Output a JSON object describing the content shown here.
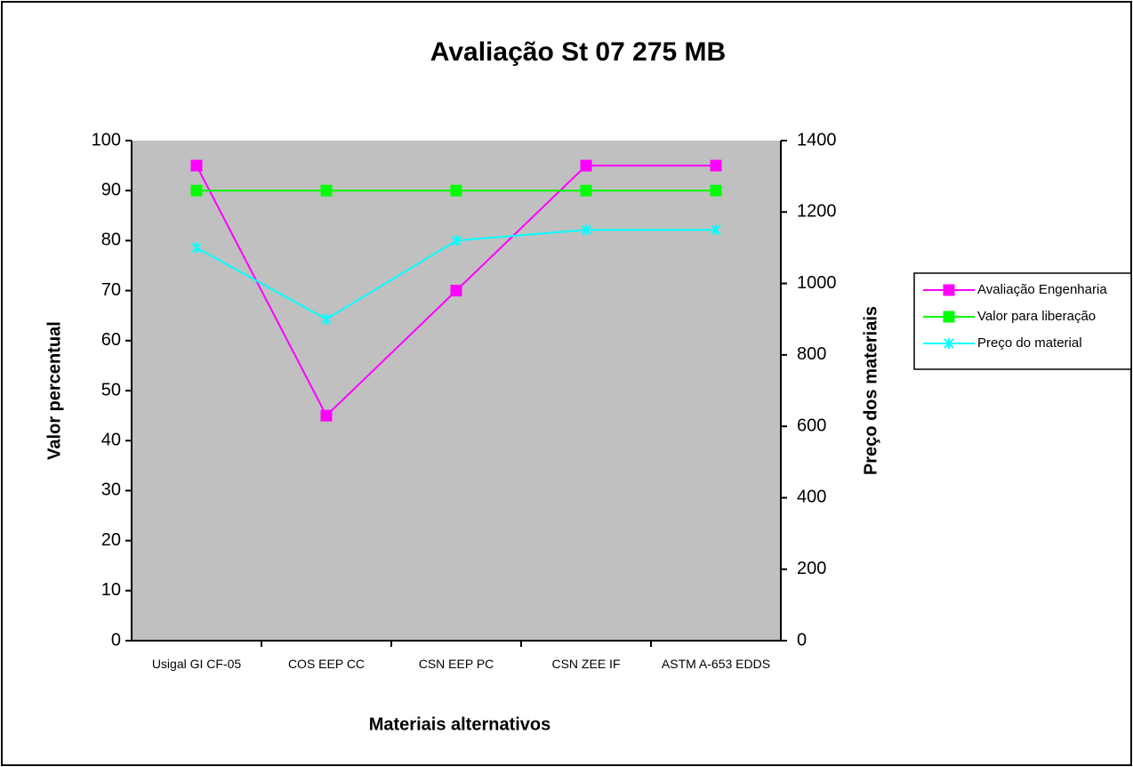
{
  "chart_data": {
    "type": "line",
    "title": "Avaliação St 07 275 MB",
    "x_label": "Materiais alternativos",
    "y_label": "Valor percentual",
    "y2_label": "Preço dos materiais",
    "categories": [
      "Usigal GI CF-05",
      "COS EEP CC",
      "CSN EEP PC",
      "CSN ZEE IF",
      "ASTM A-653 EDDS"
    ],
    "series": [
      {
        "name": "Avaliação Engenharia",
        "color": "#ff00ff",
        "marker": "square",
        "values": [
          95,
          45,
          70,
          95,
          95
        ]
      },
      {
        "name": "Valor para liberação",
        "color": "#00ff00",
        "marker": "square",
        "values": [
          90,
          90,
          90,
          90,
          90
        ]
      },
      {
        "name": "Preço do material",
        "color": "#00ffff",
        "marker": "x",
        "axis": "y2",
        "values": [
          1100,
          900,
          1120,
          1150,
          1150
        ]
      }
    ],
    "ylim": [
      0,
      100
    ],
    "yticks": [
      0,
      10,
      20,
      30,
      40,
      50,
      60,
      70,
      80,
      90,
      100
    ],
    "y2lim": [
      0,
      1400
    ],
    "y2ticks": [
      0,
      200,
      400,
      600,
      800,
      1000,
      1200,
      1400
    ],
    "plot_background": "#c0c0c0",
    "legend": "right"
  }
}
